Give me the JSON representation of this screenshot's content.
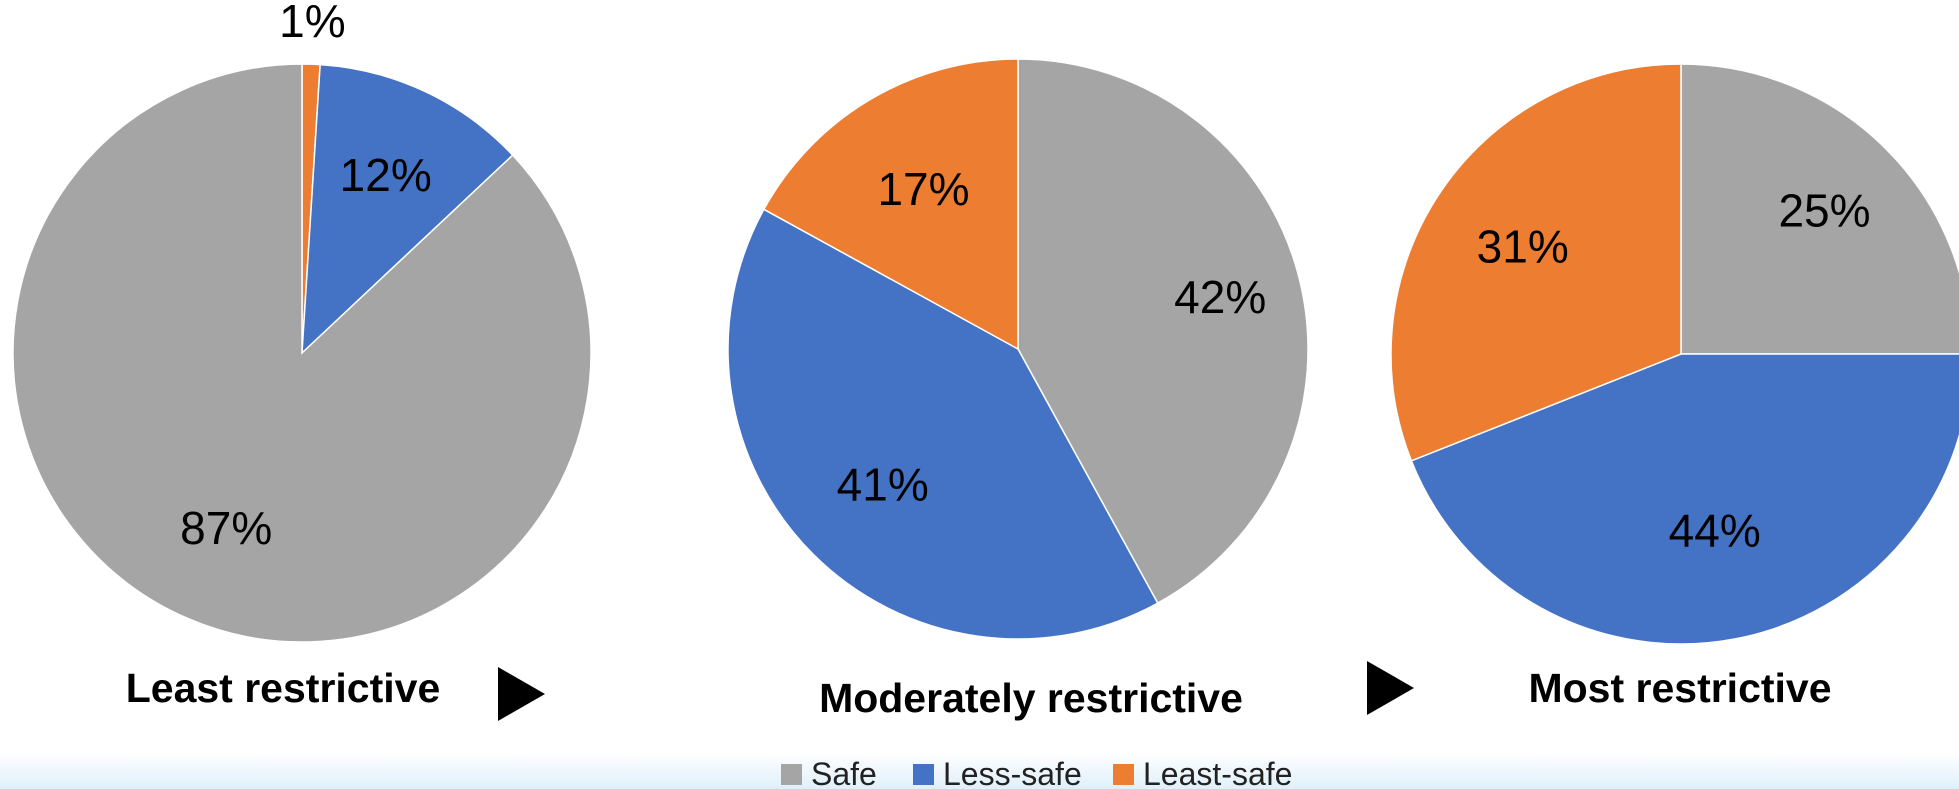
{
  "colors": {
    "safe": "#A5A5A5",
    "less_safe": "#4472C4",
    "least_safe": "#ED7D31",
    "arrow": "#000000"
  },
  "legend": {
    "items": [
      {
        "key": "safe",
        "label": "Safe"
      },
      {
        "key": "less_safe",
        "label": "Less-safe"
      },
      {
        "key": "least_safe",
        "label": "Least-safe"
      }
    ]
  },
  "chart_data": [
    {
      "type": "pie",
      "title": "Least restrictive",
      "slices": [
        {
          "label": "Least-safe",
          "key": "least_safe",
          "value": 1,
          "display": "1%"
        },
        {
          "label": "Less-safe",
          "key": "less_safe",
          "value": 12,
          "display": "12%"
        },
        {
          "label": "Safe",
          "key": "safe",
          "value": 87,
          "display": "87%"
        }
      ]
    },
    {
      "type": "pie",
      "title": "Moderately restrictive",
      "slices": [
        {
          "label": "Safe",
          "key": "safe",
          "value": 42,
          "display": "42%"
        },
        {
          "label": "Less-safe",
          "key": "less_safe",
          "value": 41,
          "display": "41%"
        },
        {
          "label": "Least-safe",
          "key": "least_safe",
          "value": 17,
          "display": "17%"
        }
      ]
    },
    {
      "type": "pie",
      "title": "Most restrictive",
      "slices": [
        {
          "label": "Safe",
          "key": "safe",
          "value": 25,
          "display": "25%"
        },
        {
          "label": "Less-safe",
          "key": "less_safe",
          "value": 44,
          "display": "44%"
        },
        {
          "label": "Least-safe",
          "key": "least_safe",
          "value": 31,
          "display": "31%"
        }
      ]
    }
  ]
}
